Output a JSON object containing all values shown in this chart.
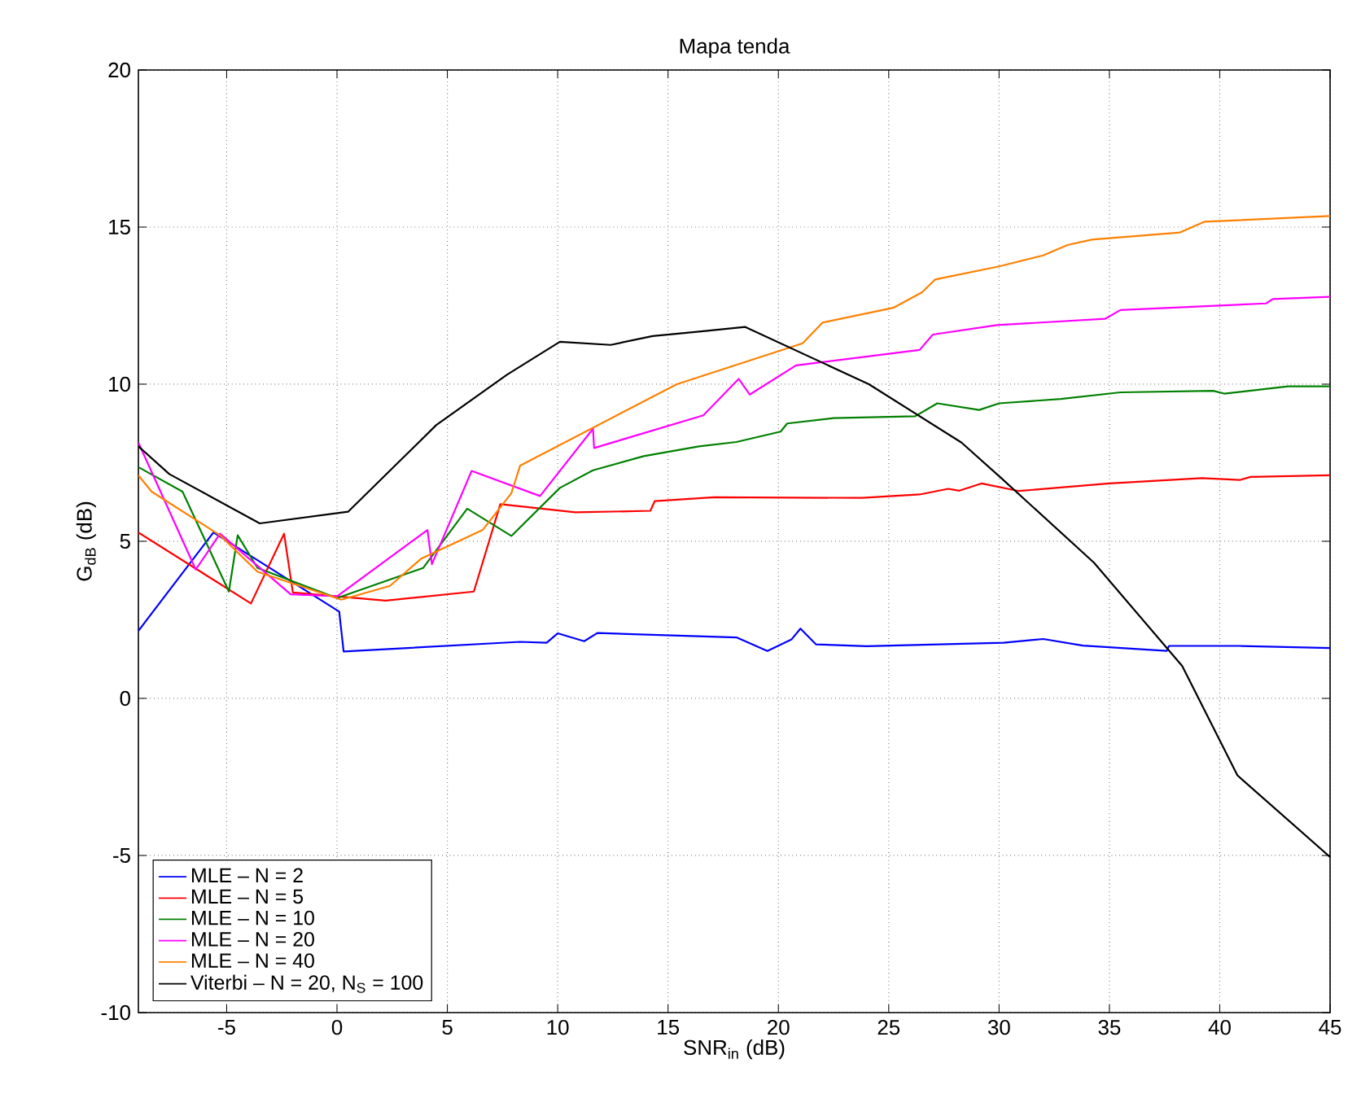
{
  "chart_data": {
    "type": "line",
    "title": "Mapa tenda",
    "xlabel": "SNR$_{in}$ (dB)",
    "ylabel": "G$_{dB}$ (dB)",
    "xlim": [
      -9,
      45
    ],
    "ylim": [
      -10,
      20
    ],
    "xticks": [
      -5,
      0,
      5,
      10,
      15,
      20,
      25,
      30,
      35,
      40,
      45
    ],
    "yticks": [
      -10,
      -5,
      0,
      5,
      10,
      15,
      20
    ],
    "grid": true,
    "legend": "bottom left",
    "series": [
      {
        "name": "MLE – N = 2",
        "color": "#0000ff",
        "x": [
          -9,
          -5.6,
          0.1,
          0.3,
          8.3,
          9.5,
          10,
          11.2,
          11.8,
          18.1,
          19.5,
          20.6,
          21,
          21.7,
          24,
          30.2,
          32,
          33.8,
          37.6,
          37.7,
          40.9,
          45
        ],
        "values": [
          2.15,
          5.28,
          2.76,
          1.49,
          1.8,
          1.77,
          2.07,
          1.82,
          2.08,
          1.94,
          1.51,
          1.88,
          2.22,
          1.72,
          1.66,
          1.77,
          1.89,
          1.68,
          1.51,
          1.67,
          1.67,
          1.6
        ]
      },
      {
        "name": "MLE – N = 5",
        "color": "#ff0000",
        "x": [
          -9,
          -3.9,
          -2.4,
          -2,
          2.2,
          6.2,
          7.4,
          10.8,
          14.2,
          14.4,
          17.1,
          23.8,
          26.4,
          27.7,
          28.2,
          29.2,
          30.9,
          35,
          39.2,
          40.9,
          41.4,
          45
        ],
        "values": [
          5.28,
          3.02,
          5.24,
          3.37,
          3.11,
          3.4,
          6.18,
          5.92,
          5.97,
          6.28,
          6.4,
          6.38,
          6.49,
          6.67,
          6.61,
          6.84,
          6.6,
          6.84,
          7.01,
          6.95,
          7.05,
          7.1
        ]
      },
      {
        "name": "MLE – N = 10",
        "color": "#008000",
        "x": [
          -9,
          -7,
          -4.9,
          -4.5,
          -3.6,
          0,
          3.9,
          5.9,
          7.9,
          10.1,
          11.6,
          13.9,
          16.4,
          18.1,
          20.1,
          20.4,
          22.5,
          26.2,
          27.2,
          29.1,
          30,
          32.8,
          35.5,
          39.7,
          40.2,
          43.1,
          45
        ],
        "values": [
          7.36,
          6.58,
          3.4,
          5.19,
          4.15,
          3.19,
          4.15,
          6.04,
          5.17,
          6.7,
          7.26,
          7.71,
          8.02,
          8.16,
          8.49,
          8.75,
          8.92,
          8.98,
          9.39,
          9.18,
          9.39,
          9.53,
          9.74,
          9.79,
          9.7,
          9.93,
          9.93
        ]
      },
      {
        "name": "MLE – N = 20",
        "color": "#ff00ff",
        "x": [
          -9,
          -6.4,
          -5.3,
          -2.1,
          0,
          4.1,
          4.3,
          6.1,
          9.2,
          11.6,
          11.65,
          12.7,
          16.6,
          18.2,
          18.7,
          20.8,
          26.4,
          27,
          29.9,
          34.8,
          35.5,
          42.1,
          42.4,
          45
        ],
        "values": [
          8.14,
          4.1,
          5.24,
          3.31,
          3.25,
          5.36,
          4.27,
          7.24,
          6.44,
          8.58,
          7.97,
          8.19,
          9.01,
          10.17,
          9.67,
          10.6,
          11.09,
          11.58,
          11.88,
          12.08,
          12.36,
          12.57,
          12.71,
          12.78
        ]
      },
      {
        "name": "MLE – N = 40",
        "color": "#ff8000",
        "x": [
          -9,
          -8.4,
          -5.3,
          -3.6,
          0.2,
          2.4,
          3.8,
          6.6,
          7.9,
          8.3,
          15.4,
          21.1,
          22,
          25.2,
          26.5,
          27.1,
          30,
          32,
          33.1,
          34.2,
          38.2,
          39.3,
          45
        ],
        "values": [
          7.1,
          6.58,
          5.19,
          4.03,
          3.14,
          3.58,
          4.44,
          5.36,
          6.53,
          7.41,
          10,
          11.3,
          11.96,
          12.43,
          12.92,
          13.33,
          13.75,
          14.1,
          14.43,
          14.6,
          14.83,
          15.17,
          15.35
        ]
      },
      {
        "name": "Viterbi – N = 20, N$_{S}$ = 100",
        "color": "#000000",
        "x": [
          -9,
          -7.6,
          -3.5,
          0.5,
          4.5,
          7.7,
          10.1,
          12.4,
          14.3,
          16.5,
          18.5,
          24.1,
          28.3,
          30.1,
          34.3,
          38.3,
          40.8,
          45
        ],
        "values": [
          8.02,
          7.14,
          5.57,
          5.94,
          8.7,
          10.3,
          11.35,
          11.25,
          11.53,
          11.68,
          11.82,
          10,
          8.14,
          7.01,
          4.32,
          1.03,
          -2.45,
          -5.05
        ]
      }
    ]
  }
}
